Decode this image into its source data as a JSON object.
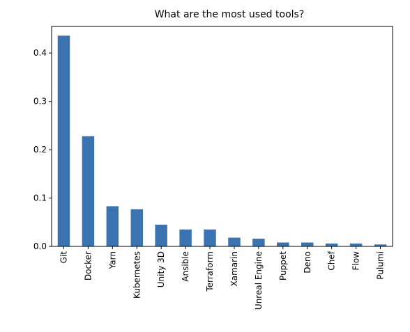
{
  "chart_data": {
    "type": "bar",
    "title": "What are the most used tools?",
    "xlabel": "",
    "ylabel": "",
    "categories": [
      "Git",
      "Docker",
      "Yarn",
      "Kubernetes",
      "Unity 3D",
      "Ansible",
      "Terraform",
      "Xamarin",
      "Unreal Engine",
      "Puppet",
      "Deno",
      "Chef",
      "Flow",
      "Pulumi"
    ],
    "values": [
      0.436,
      0.228,
      0.083,
      0.077,
      0.045,
      0.035,
      0.035,
      0.018,
      0.016,
      0.008,
      0.008,
      0.006,
      0.006,
      0.004
    ],
    "ylim": [
      0,
      0.455
    ],
    "yticks": [
      0.0,
      0.1,
      0.2,
      0.3,
      0.4
    ],
    "ytick_labels": [
      "0.0",
      "0.1",
      "0.2",
      "0.3",
      "0.4"
    ],
    "bar_color": "#3a73b0",
    "grid": false,
    "legend": "none"
  }
}
